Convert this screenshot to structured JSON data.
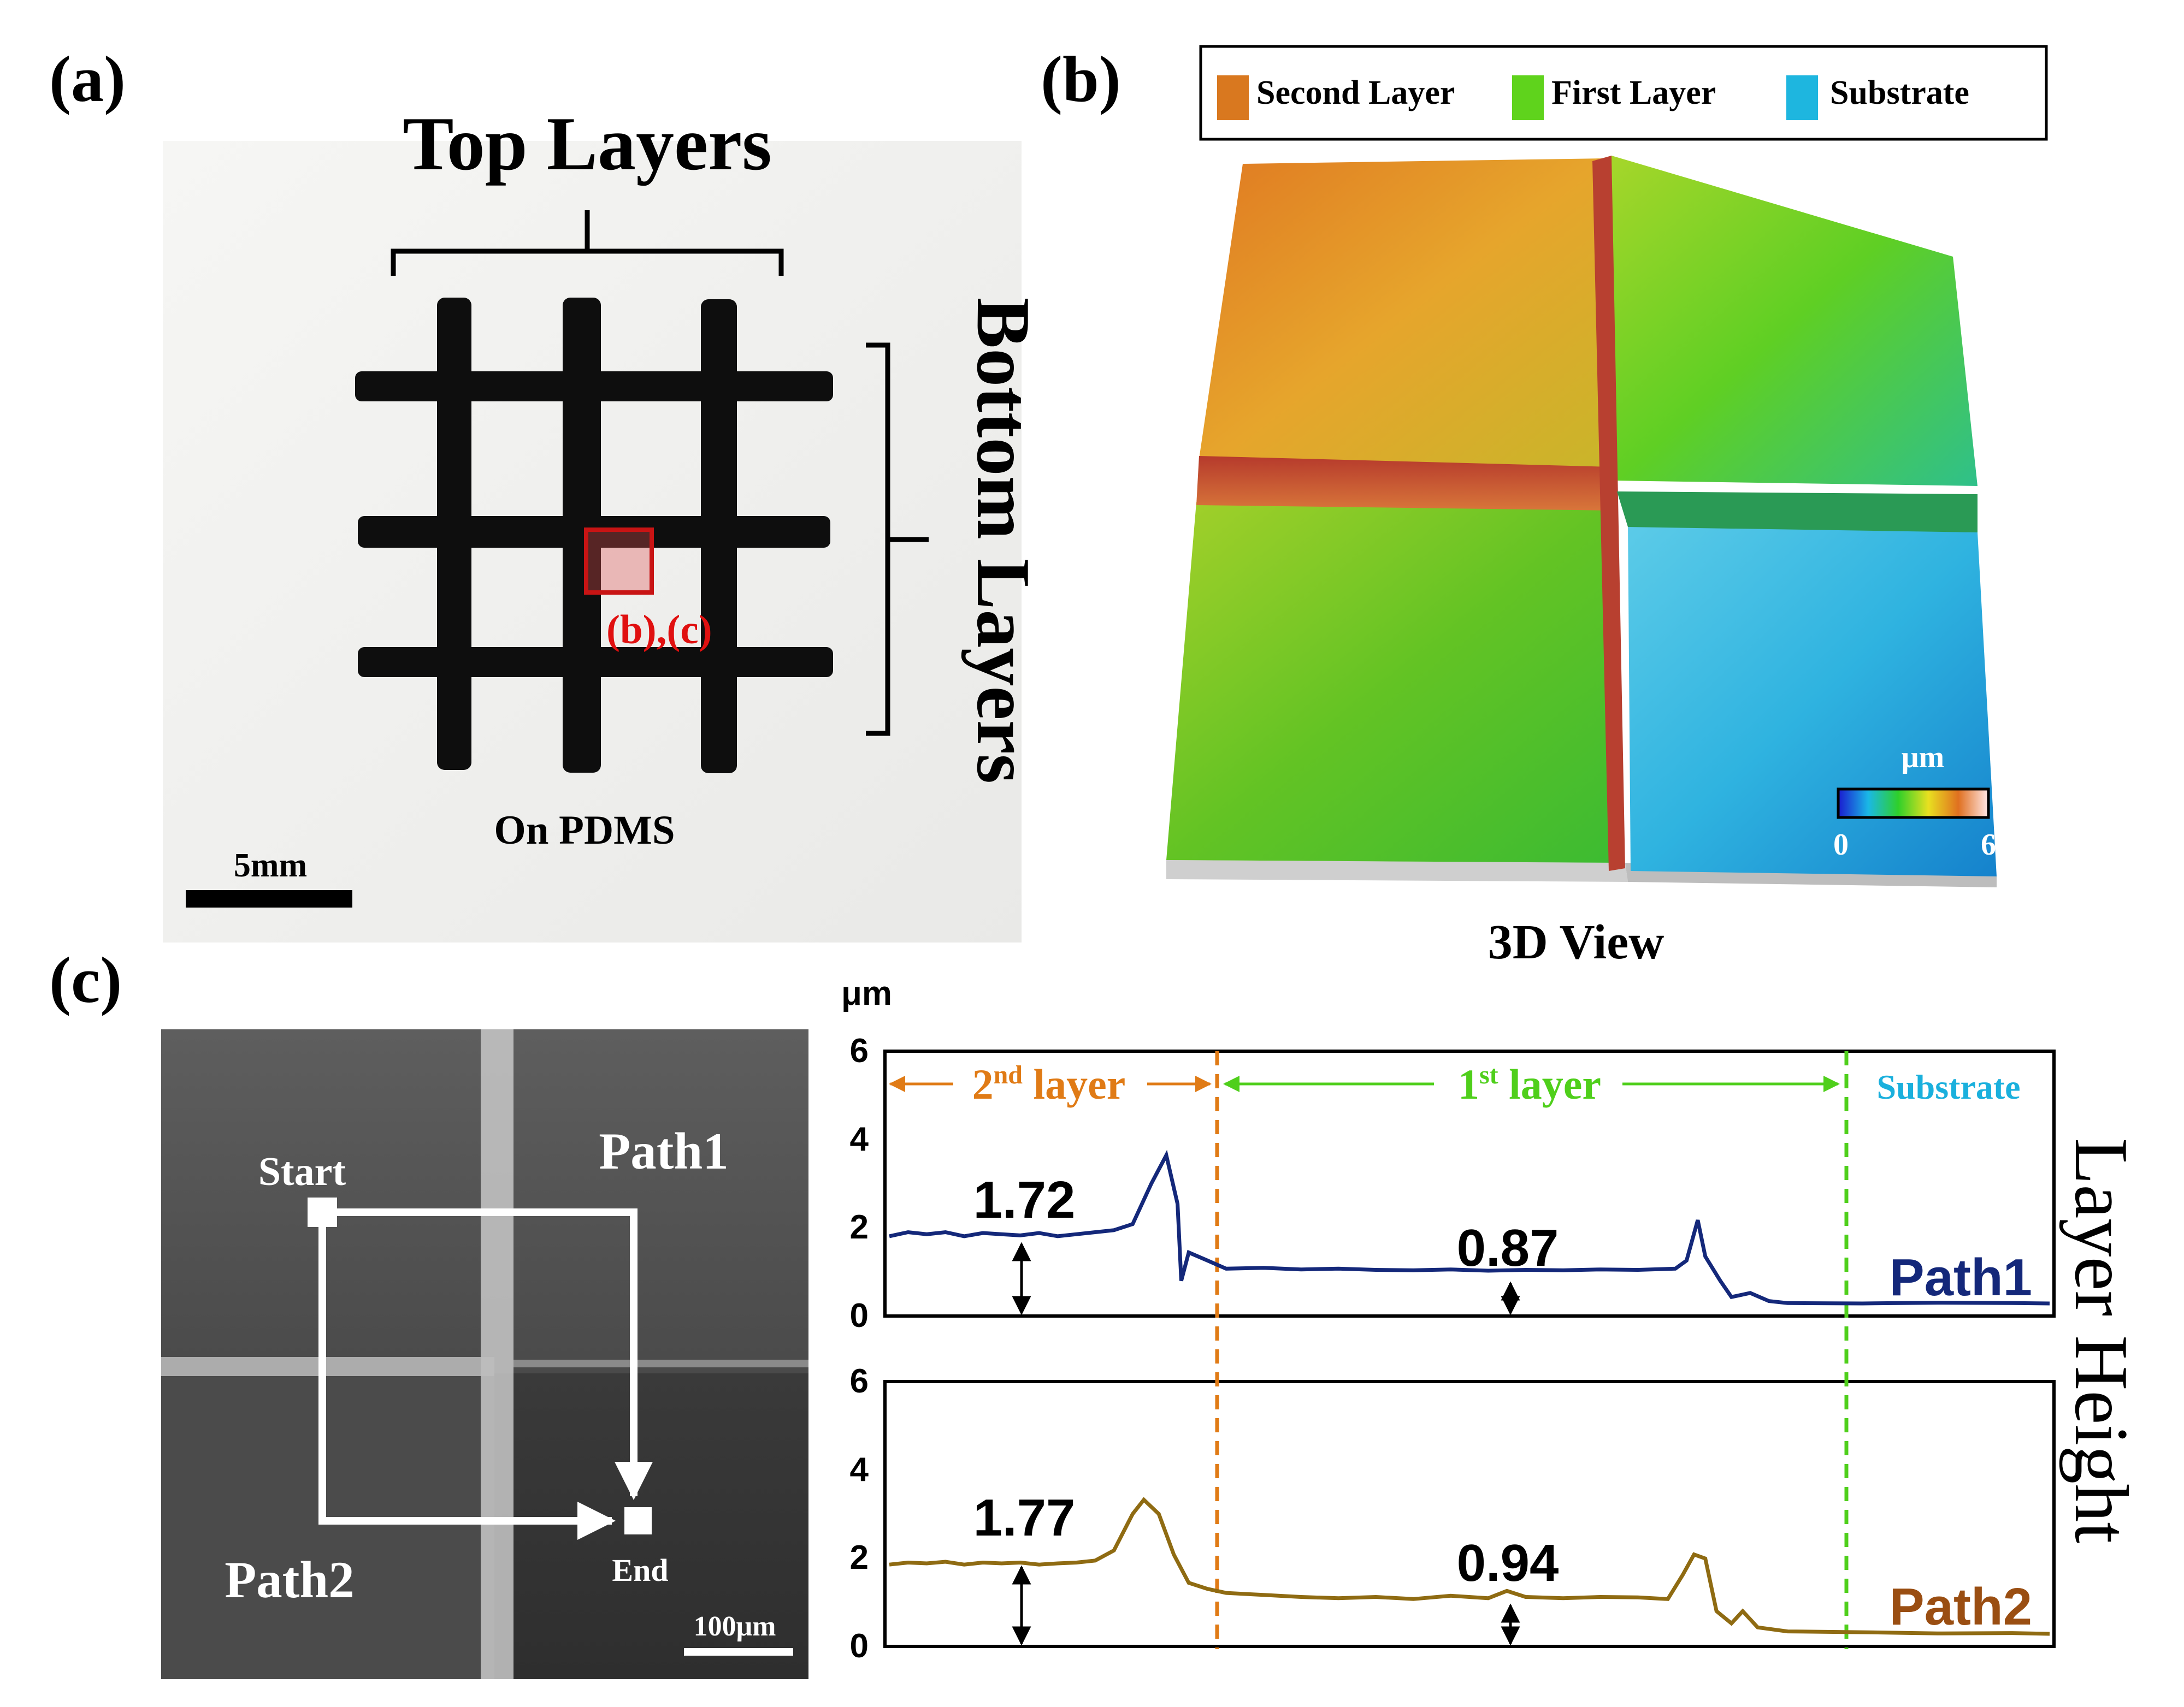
{
  "panel_labels": {
    "a": "(a)",
    "b": "(b)",
    "c": "(c)"
  },
  "panel_a": {
    "top_label": "Top Layers",
    "side_label": "Bottom Layers",
    "roi_label": "(b),(c)",
    "caption": "On PDMS",
    "scalebar": "5mm"
  },
  "panel_b": {
    "legend": [
      {
        "label": "Second Layer",
        "color": "#d9781f"
      },
      {
        "label": "First Layer",
        "color": "#5fd31c"
      },
      {
        "label": "Substrate",
        "color": "#1eb6df"
      }
    ],
    "colorbar": {
      "unit": "μm",
      "min": "0",
      "max": "6"
    },
    "caption": "3D View"
  },
  "panel_c_image": {
    "start": "Start",
    "end": "End",
    "path1": "Path1",
    "path2": "Path2",
    "scalebar": "100μm"
  },
  "chart_data": {
    "type": "line",
    "ylabel": "Layer Height",
    "yunit": "μm",
    "ylim": [
      0,
      6
    ],
    "yticks": [
      "6",
      "4",
      "2",
      "0"
    ],
    "regions": [
      {
        "base": "2",
        "sup": "nd",
        "text": " layer",
        "color": "#e07b16"
      },
      {
        "base": "1",
        "sup": "st",
        "text": " layer",
        "color": "#4fcf1b"
      },
      {
        "text": "Substrate",
        "color": "#1ab0dd"
      }
    ],
    "series": [
      {
        "name": "Path1",
        "color": "#14287a",
        "annotations": [
          "1.72",
          "0.87"
        ],
        "points": [
          [
            0,
            1.7
          ],
          [
            0.05,
            1.8
          ],
          [
            0.1,
            1.75
          ],
          [
            0.15,
            1.8
          ],
          [
            0.2,
            1.7
          ],
          [
            0.25,
            1.78
          ],
          [
            0.3,
            1.75
          ],
          [
            0.35,
            1.72
          ],
          [
            0.4,
            1.78
          ],
          [
            0.45,
            1.7
          ],
          [
            0.5,
            1.75
          ],
          [
            0.55,
            1.8
          ],
          [
            0.6,
            1.85
          ],
          [
            0.65,
            2.0
          ],
          [
            0.7,
            3.0
          ],
          [
            0.74,
            3.7
          ],
          [
            0.77,
            2.5
          ],
          [
            0.78,
            0.6
          ],
          [
            0.8,
            1.3
          ],
          [
            0.85,
            1.1
          ],
          [
            0.9,
            0.9
          ],
          [
            1.0,
            0.92
          ],
          [
            1.1,
            0.88
          ],
          [
            1.2,
            0.9
          ],
          [
            1.3,
            0.87
          ],
          [
            1.4,
            0.86
          ],
          [
            1.5,
            0.88
          ],
          [
            1.6,
            0.85
          ],
          [
            1.7,
            0.87
          ],
          [
            1.8,
            0.86
          ],
          [
            1.9,
            0.88
          ],
          [
            2.0,
            0.87
          ],
          [
            2.1,
            0.9
          ],
          [
            2.13,
            1.1
          ],
          [
            2.16,
            2.1
          ],
          [
            2.18,
            1.2
          ],
          [
            2.22,
            0.6
          ],
          [
            2.25,
            0.2
          ],
          [
            2.3,
            0.3
          ],
          [
            2.35,
            0.1
          ],
          [
            2.4,
            0.05
          ],
          [
            2.6,
            0.04
          ],
          [
            2.8,
            0.06
          ],
          [
            3.0,
            0.05
          ],
          [
            3.1,
            0.04
          ]
        ]
      },
      {
        "name": "Path2",
        "color": "#8f6b12",
        "annotations": [
          "1.77",
          "0.94"
        ],
        "points": [
          [
            0,
            1.75
          ],
          [
            0.05,
            1.8
          ],
          [
            0.1,
            1.78
          ],
          [
            0.15,
            1.82
          ],
          [
            0.2,
            1.75
          ],
          [
            0.25,
            1.8
          ],
          [
            0.3,
            1.78
          ],
          [
            0.35,
            1.8
          ],
          [
            0.4,
            1.75
          ],
          [
            0.45,
            1.78
          ],
          [
            0.5,
            1.8
          ],
          [
            0.55,
            1.85
          ],
          [
            0.6,
            2.1
          ],
          [
            0.65,
            3.0
          ],
          [
            0.68,
            3.35
          ],
          [
            0.72,
            3.0
          ],
          [
            0.76,
            2.0
          ],
          [
            0.8,
            1.3
          ],
          [
            0.85,
            1.15
          ],
          [
            0.9,
            1.05
          ],
          [
            1.0,
            1.0
          ],
          [
            1.1,
            0.95
          ],
          [
            1.2,
            0.92
          ],
          [
            1.3,
            0.95
          ],
          [
            1.4,
            0.9
          ],
          [
            1.5,
            0.98
          ],
          [
            1.6,
            0.92
          ],
          [
            1.65,
            1.1
          ],
          [
            1.7,
            0.95
          ],
          [
            1.8,
            0.92
          ],
          [
            1.9,
            0.95
          ],
          [
            2.0,
            0.94
          ],
          [
            2.08,
            0.9
          ],
          [
            2.12,
            1.5
          ],
          [
            2.15,
            2.0
          ],
          [
            2.18,
            1.9
          ],
          [
            2.21,
            0.6
          ],
          [
            2.25,
            0.3
          ],
          [
            2.28,
            0.6
          ],
          [
            2.32,
            0.2
          ],
          [
            2.4,
            0.1
          ],
          [
            2.6,
            0.08
          ],
          [
            2.8,
            0.05
          ],
          [
            3.0,
            0.06
          ],
          [
            3.1,
            0.04
          ]
        ]
      }
    ]
  }
}
